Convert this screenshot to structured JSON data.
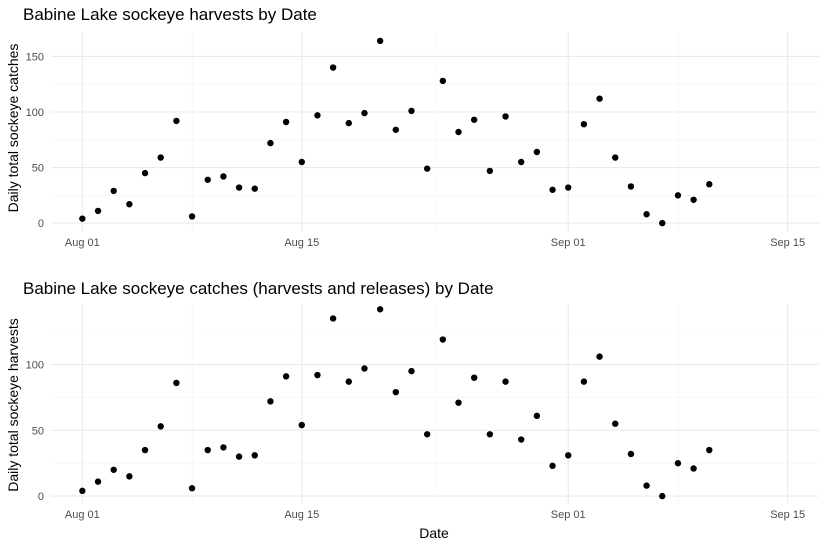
{
  "chart_data": [
    {
      "type": "scatter",
      "title": "Babine Lake sockeye harvests by Date",
      "xlabel": "",
      "ylabel": "Daily total sockeye catches",
      "x_tick_labels": [
        "Aug 01",
        "Aug 15",
        "Sep 01",
        "Sep 15"
      ],
      "x_tick_dates": [
        "2023-08-01",
        "2023-08-15",
        "2023-09-01",
        "2023-09-15"
      ],
      "xlim": [
        "2023-07-30",
        "2023-09-17"
      ],
      "y_ticks": [
        0,
        50,
        100,
        150
      ],
      "ylim": [
        -8,
        172
      ],
      "grid": true,
      "series": [
        {
          "x": [
            "2023-08-01",
            "2023-08-02",
            "2023-08-03",
            "2023-08-04",
            "2023-08-05",
            "2023-08-06",
            "2023-08-07",
            "2023-08-08",
            "2023-08-09",
            "2023-08-10",
            "2023-08-11",
            "2023-08-12",
            "2023-08-13",
            "2023-08-14",
            "2023-08-15",
            "2023-08-16",
            "2023-08-17",
            "2023-08-18",
            "2023-08-19",
            "2023-08-20",
            "2023-08-21",
            "2023-08-22",
            "2023-08-23",
            "2023-08-24",
            "2023-08-25",
            "2023-08-26",
            "2023-08-27",
            "2023-08-28",
            "2023-08-29",
            "2023-08-30",
            "2023-08-31",
            "2023-09-01",
            "2023-09-02",
            "2023-09-03",
            "2023-09-04",
            "2023-09-05",
            "2023-09-06",
            "2023-09-07",
            "2023-09-08",
            "2023-09-09",
            "2023-09-10"
          ],
          "y": [
            4,
            11,
            29,
            17,
            45,
            59,
            92,
            6,
            39,
            42,
            32,
            31,
            72,
            91,
            55,
            97,
            140,
            90,
            99,
            164,
            84,
            101,
            49,
            128,
            82,
            93,
            47,
            96,
            55,
            64,
            30,
            32,
            89,
            112,
            59,
            33,
            8,
            0,
            25,
            21,
            35
          ]
        }
      ]
    },
    {
      "type": "scatter",
      "title": "Babine Lake sockeye catches (harvests and releases) by Date",
      "xlabel": "Date",
      "ylabel": "Daily total sockeye harvests",
      "x_tick_labels": [
        "Aug 01",
        "Aug 15",
        "Sep 01",
        "Sep 15"
      ],
      "x_tick_dates": [
        "2023-08-01",
        "2023-08-15",
        "2023-09-01",
        "2023-09-15"
      ],
      "xlim": [
        "2023-07-30",
        "2023-09-17"
      ],
      "y_ticks": [
        0,
        50,
        100
      ],
      "ylim": [
        -6,
        146
      ],
      "grid": true,
      "series": [
        {
          "x": [
            "2023-08-01",
            "2023-08-02",
            "2023-08-03",
            "2023-08-04",
            "2023-08-05",
            "2023-08-06",
            "2023-08-07",
            "2023-08-08",
            "2023-08-09",
            "2023-08-10",
            "2023-08-11",
            "2023-08-12",
            "2023-08-13",
            "2023-08-14",
            "2023-08-15",
            "2023-08-16",
            "2023-08-17",
            "2023-08-18",
            "2023-08-19",
            "2023-08-20",
            "2023-08-21",
            "2023-08-22",
            "2023-08-23",
            "2023-08-24",
            "2023-08-25",
            "2023-08-26",
            "2023-08-27",
            "2023-08-28",
            "2023-08-29",
            "2023-08-30",
            "2023-08-31",
            "2023-09-01",
            "2023-09-02",
            "2023-09-03",
            "2023-09-04",
            "2023-09-05",
            "2023-09-06",
            "2023-09-07",
            "2023-09-08",
            "2023-09-09",
            "2023-09-10"
          ],
          "y": [
            4,
            11,
            20,
            15,
            35,
            53,
            86,
            6,
            35,
            37,
            30,
            31,
            72,
            91,
            54,
            92,
            135,
            87,
            97,
            142,
            79,
            95,
            47,
            119,
            71,
            90,
            47,
            87,
            43,
            61,
            23,
            31,
            87,
            106,
            55,
            32,
            8,
            0,
            25,
            21,
            35
          ]
        }
      ]
    }
  ]
}
